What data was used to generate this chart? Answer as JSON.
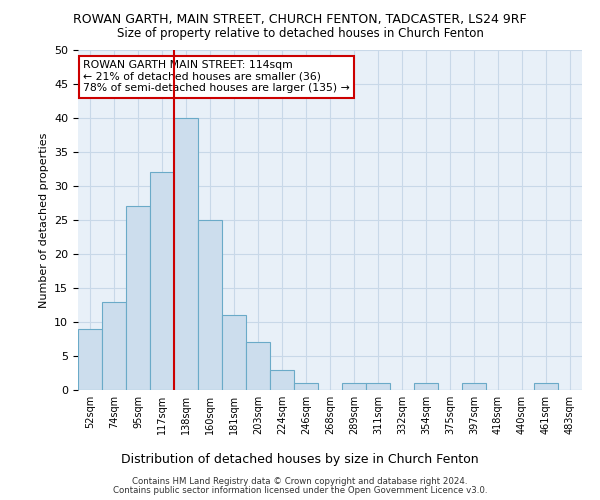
{
  "title1": "ROWAN GARTH, MAIN STREET, CHURCH FENTON, TADCASTER, LS24 9RF",
  "title2": "Size of property relative to detached houses in Church Fenton",
  "xlabel": "Distribution of detached houses by size in Church Fenton",
  "ylabel": "Number of detached properties",
  "categories": [
    "52sqm",
    "74sqm",
    "95sqm",
    "117sqm",
    "138sqm",
    "160sqm",
    "181sqm",
    "203sqm",
    "224sqm",
    "246sqm",
    "268sqm",
    "289sqm",
    "311sqm",
    "332sqm",
    "354sqm",
    "375sqm",
    "397sqm",
    "418sqm",
    "440sqm",
    "461sqm",
    "483sqm"
  ],
  "values": [
    9,
    13,
    27,
    32,
    40,
    25,
    11,
    7,
    3,
    1,
    0,
    1,
    1,
    0,
    1,
    0,
    1,
    0,
    0,
    1,
    0
  ],
  "bar_color": "#ccdded",
  "bar_edge_color": "#6aaac8",
  "vline_x": 3.5,
  "vline_color": "#cc0000",
  "ylim": [
    0,
    50
  ],
  "yticks": [
    0,
    5,
    10,
    15,
    20,
    25,
    30,
    35,
    40,
    45,
    50
  ],
  "annotation_text": "ROWAN GARTH MAIN STREET: 114sqm\n← 21% of detached houses are smaller (36)\n78% of semi-detached houses are larger (135) →",
  "annotation_box_color": "#ffffff",
  "annotation_box_edge": "#cc0000",
  "footer1": "Contains HM Land Registry data © Crown copyright and database right 2024.",
  "footer2": "Contains public sector information licensed under the Open Government Licence v3.0.",
  "bg_color": "#e8f0f8",
  "grid_color": "#c8d8e8"
}
